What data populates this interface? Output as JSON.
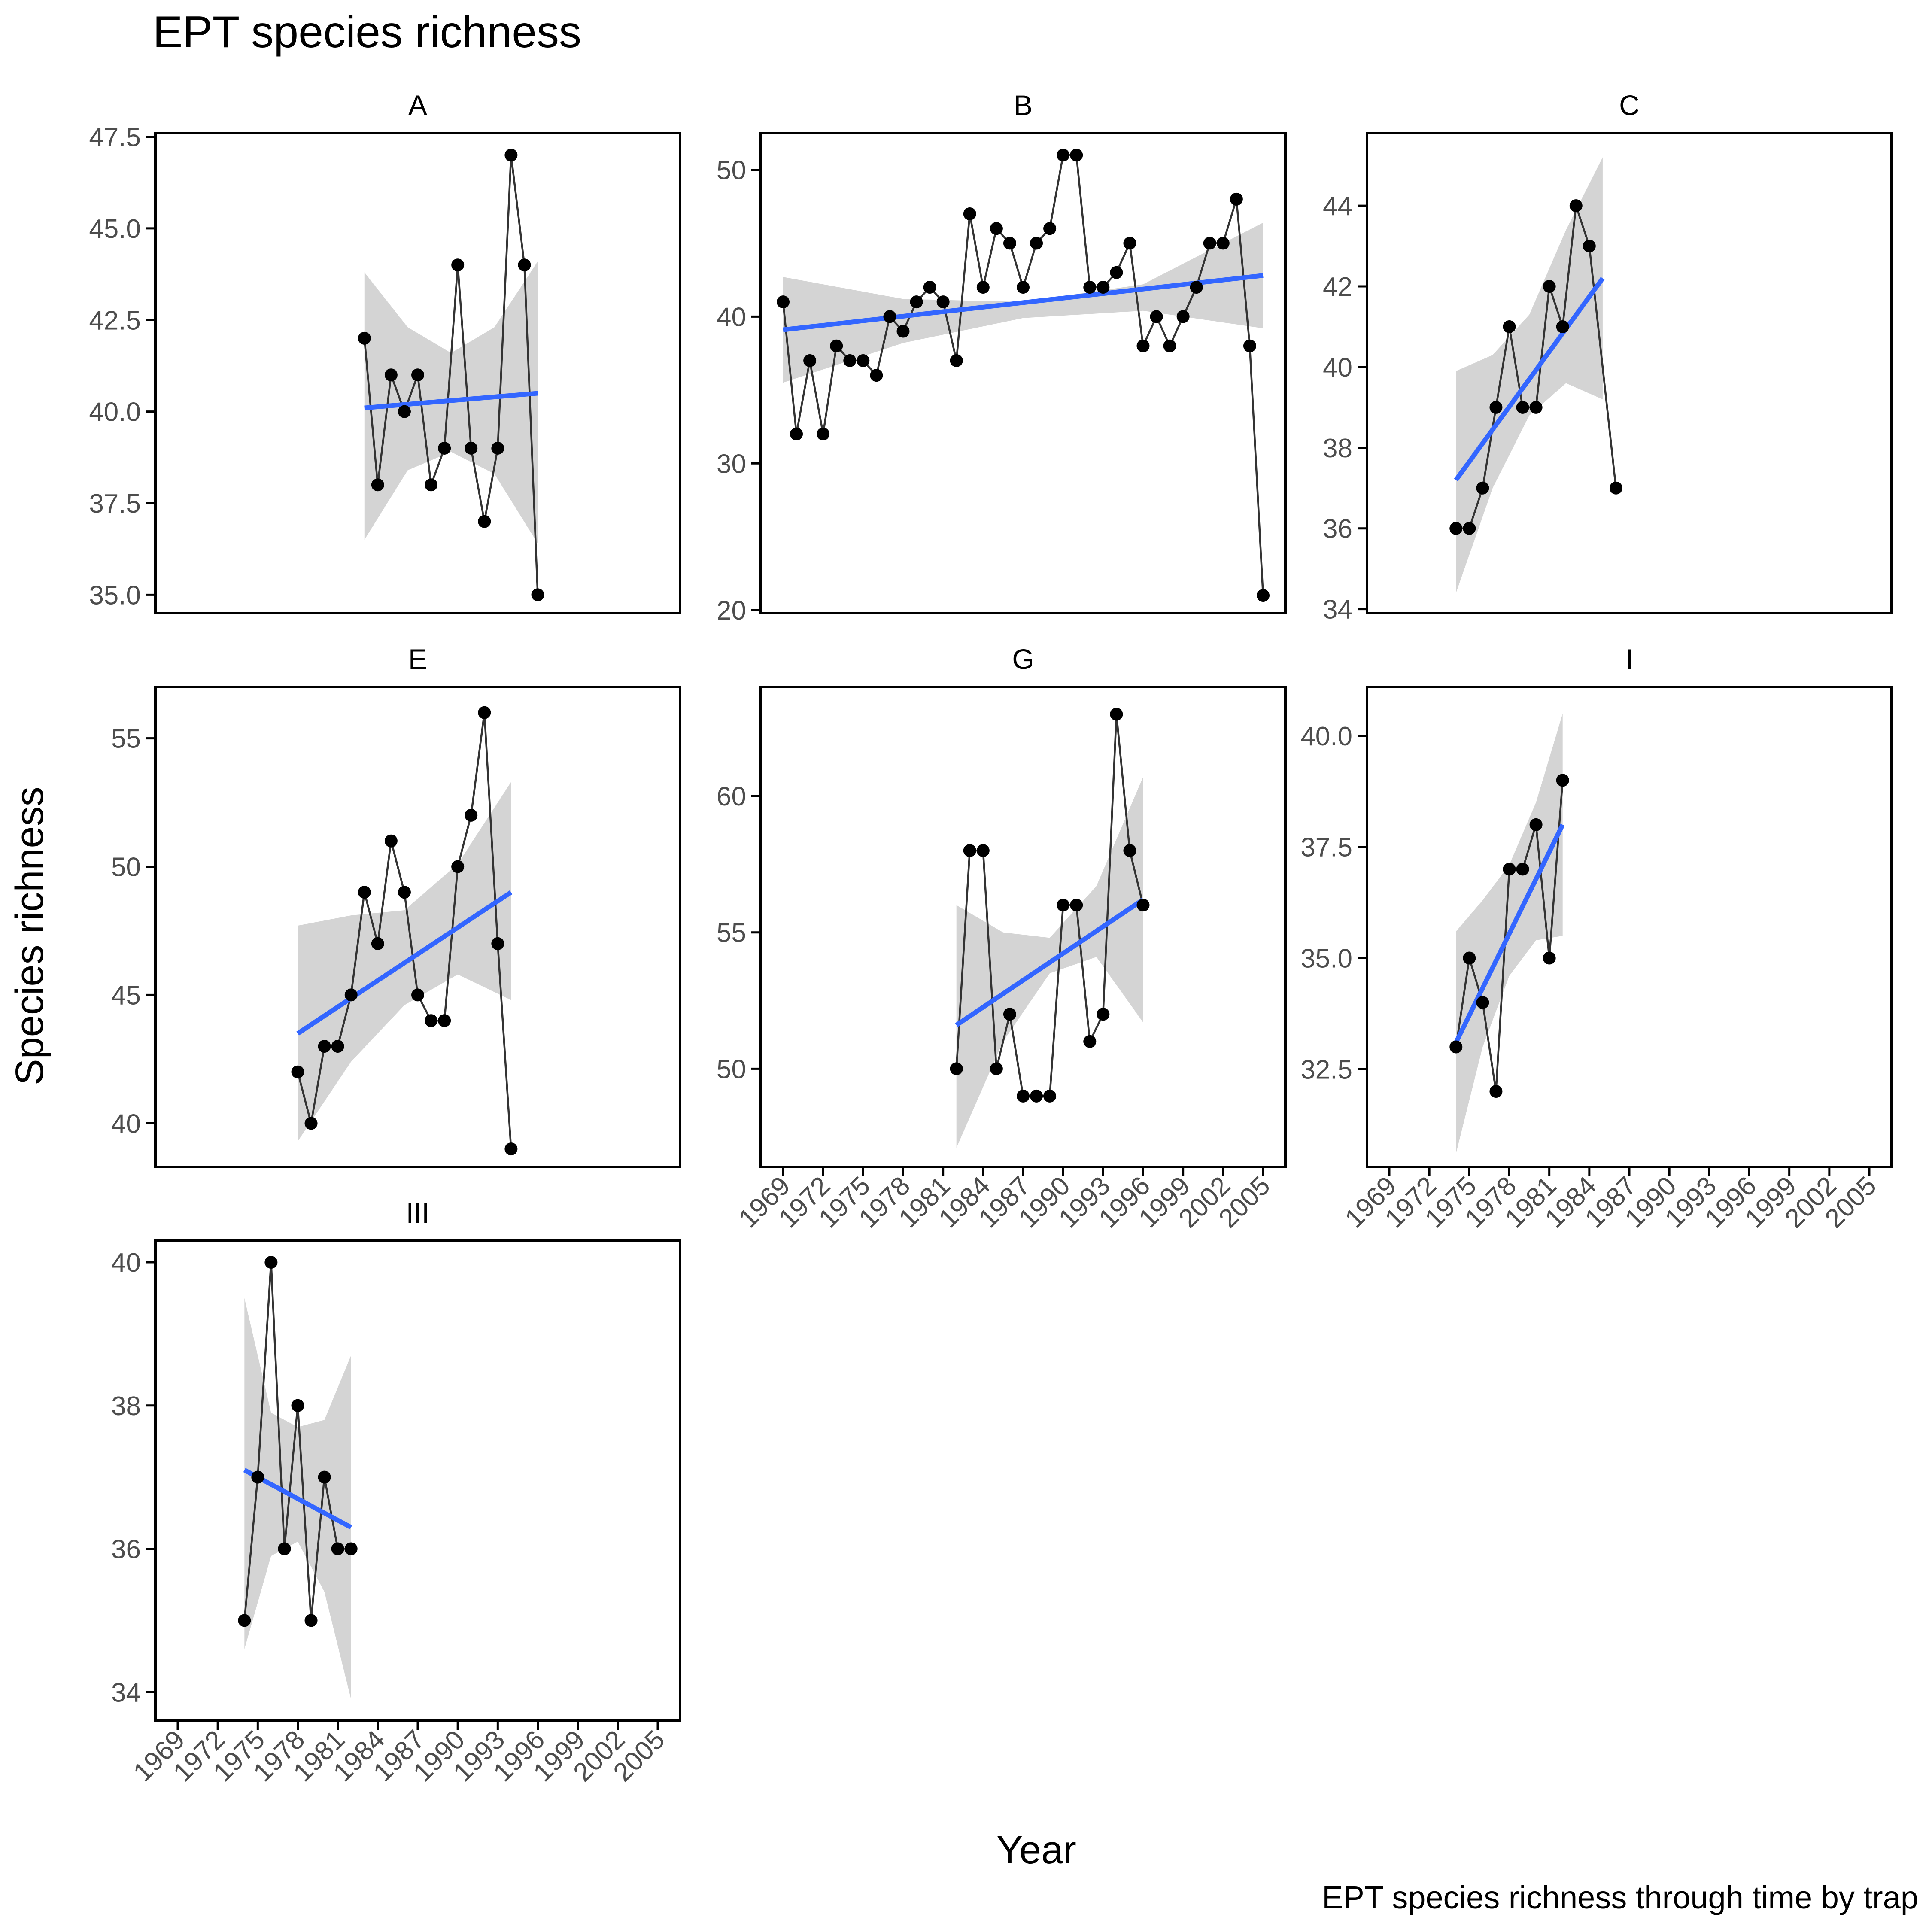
{
  "chart_data": {
    "type": "line",
    "title": "EPT species richness",
    "xlabel": "Year",
    "ylabel": "Species richness",
    "caption": "EPT species richness through time by trap",
    "x_ticks": [
      1969,
      1972,
      1975,
      1978,
      1981,
      1984,
      1987,
      1990,
      1993,
      1996,
      1999,
      2002,
      2005
    ],
    "xlim": [
      1968,
      2006
    ],
    "grid": false,
    "smoother": "linear fit with confidence band",
    "colors": {
      "points": "#000000",
      "line": "#333333",
      "trend": "#3366ff",
      "band": "#d4d4d4"
    },
    "panels": [
      {
        "label": "A",
        "ylim": [
          34.5,
          47.6
        ],
        "y_ticks": [
          35.0,
          37.5,
          40.0,
          42.5,
          45.0,
          47.5
        ],
        "y_decimals": 1,
        "show_x_axis": false,
        "x": [
          1983,
          1984,
          1985,
          1986,
          1987,
          1988,
          1989,
          1990,
          1991,
          1992,
          1993,
          1994,
          1995,
          1996
        ],
        "y": [
          42,
          38,
          41,
          40,
          41,
          38,
          39,
          44,
          39,
          37,
          39,
          47,
          44,
          35
        ],
        "trend": {
          "x": [
            1983,
            1996
          ],
          "y": [
            40.1,
            40.5
          ]
        },
        "band_lower": [
          36.5,
          38.4,
          38.9,
          38.3,
          36.4
        ],
        "band_upper": [
          43.8,
          42.3,
          41.6,
          42.3,
          44.1
        ]
      },
      {
        "label": "B",
        "ylim": [
          19.8,
          52.5
        ],
        "y_ticks": [
          20,
          30,
          40,
          50
        ],
        "y_decimals": 0,
        "show_x_axis": false,
        "x": [
          1969,
          1970,
          1971,
          1972,
          1973,
          1974,
          1975,
          1976,
          1977,
          1978,
          1979,
          1980,
          1981,
          1982,
          1983,
          1984,
          1985,
          1986,
          1987,
          1988,
          1989,
          1990,
          1991,
          1992,
          1993,
          1994,
          1995,
          1996,
          1997,
          1998,
          1999,
          2000,
          2001,
          2002,
          2003,
          2004,
          2005
        ],
        "y": [
          41,
          32,
          37,
          32,
          38,
          37,
          37,
          36,
          40,
          39,
          41,
          42,
          41,
          37,
          47,
          42,
          46,
          45,
          42,
          45,
          46,
          51,
          51,
          42,
          42,
          43,
          45,
          38,
          40,
          38,
          40,
          42,
          45,
          45,
          48,
          38,
          21
        ],
        "trend": {
          "x": [
            1969,
            2005
          ],
          "y": [
            39.1,
            42.8
          ]
        },
        "band_lower": [
          35.5,
          38.2,
          39.9,
          40.4,
          39.2
        ],
        "band_upper": [
          42.7,
          41.2,
          41.0,
          42.2,
          46.4
        ]
      },
      {
        "label": "C",
        "ylim": [
          33.9,
          45.8
        ],
        "y_ticks": [
          34,
          36,
          38,
          40,
          42,
          44
        ],
        "y_decimals": 0,
        "show_x_axis": false,
        "x": [
          1974,
          1975,
          1976,
          1977,
          1978,
          1979,
          1980,
          1981,
          1982,
          1983,
          1984,
          1986
        ],
        "y": [
          36,
          36,
          37,
          39,
          41,
          39,
          39,
          42,
          41,
          44,
          43,
          37
        ],
        "trend": {
          "x": [
            1974,
            1985
          ],
          "y": [
            37.2,
            42.2
          ]
        },
        "band_lower": [
          34.4,
          37.0,
          38.8,
          39.6,
          39.2
        ],
        "band_upper": [
          39.9,
          40.3,
          41.3,
          43.4,
          45.2
        ]
      },
      {
        "label": "E",
        "ylim": [
          38.3,
          57.0
        ],
        "y_ticks": [
          40,
          45,
          50,
          55
        ],
        "y_decimals": 0,
        "show_x_axis": false,
        "x": [
          1978,
          1979,
          1980,
          1981,
          1982,
          1983,
          1984,
          1985,
          1986,
          1987,
          1988,
          1989,
          1990,
          1991,
          1992,
          1993,
          1994
        ],
        "y": [
          42,
          40,
          43,
          43,
          45,
          49,
          47,
          51,
          49,
          45,
          44,
          44,
          50,
          52,
          56,
          47,
          39
        ],
        "trend": {
          "x": [
            1978,
            1994
          ],
          "y": [
            43.5,
            49.0
          ]
        },
        "band_lower": [
          39.3,
          42.4,
          44.6,
          45.8,
          44.8
        ],
        "band_upper": [
          47.7,
          48.1,
          48.3,
          50.1,
          53.3
        ]
      },
      {
        "label": "G",
        "ylim": [
          46.4,
          64.0
        ],
        "y_ticks": [
          50,
          55,
          60
        ],
        "y_decimals": 0,
        "show_x_axis": true,
        "x": [
          1982,
          1983,
          1984,
          1985,
          1986,
          1987,
          1988,
          1989,
          1990,
          1991,
          1992,
          1993,
          1994,
          1995,
          1996
        ],
        "y": [
          50,
          58,
          58,
          50,
          52,
          49,
          49,
          49,
          56,
          56,
          51,
          52,
          63,
          58,
          56
        ],
        "trend": {
          "x": [
            1982,
            1996
          ],
          "y": [
            51.6,
            56.2
          ]
        },
        "band_lower": [
          47.1,
          51.0,
          53.5,
          54.1,
          51.7
        ],
        "band_upper": [
          56.0,
          55.0,
          54.8,
          56.7,
          60.7
        ]
      },
      {
        "label": "I",
        "ylim": [
          30.3,
          41.1
        ],
        "y_ticks": [
          32.5,
          35.0,
          37.5,
          40.0
        ],
        "y_decimals": 1,
        "show_x_axis": true,
        "x": [
          1974,
          1975,
          1976,
          1977,
          1978,
          1979,
          1980,
          1981,
          1982
        ],
        "y": [
          33,
          35,
          34,
          32,
          37,
          37,
          38,
          35,
          39
        ],
        "trend": {
          "x": [
            1974,
            1982
          ],
          "y": [
            33.1,
            38.0
          ]
        },
        "band_lower": [
          30.6,
          33.0,
          34.6,
          35.4,
          35.5
        ],
        "band_upper": [
          35.6,
          36.3,
          37.1,
          38.5,
          40.5
        ]
      },
      {
        "label": "III",
        "ylim": [
          33.6,
          40.3
        ],
        "y_ticks": [
          34,
          36,
          38,
          40
        ],
        "y_decimals": 0,
        "show_x_axis": true,
        "x": [
          1974,
          1975,
          1976,
          1977,
          1978,
          1979,
          1980,
          1981,
          1982
        ],
        "y": [
          35,
          37,
          40,
          36,
          38,
          35,
          37,
          36,
          36
        ],
        "trend": {
          "x": [
            1974,
            1982
          ],
          "y": [
            37.1,
            36.3
          ]
        },
        "band_lower": [
          34.6,
          35.9,
          36.1,
          35.4,
          33.9
        ],
        "band_upper": [
          39.5,
          37.9,
          37.7,
          37.8,
          38.7
        ]
      }
    ]
  }
}
